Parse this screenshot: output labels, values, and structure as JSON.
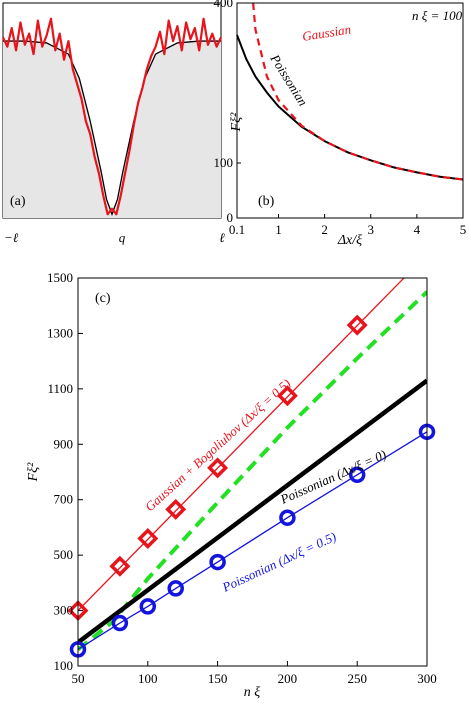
{
  "chart_data": [
    {
      "panel": "(a)",
      "type": "line",
      "x_ticklabels": [
        "−ℓ",
        "q",
        "ℓ"
      ],
      "series": [
        {
          "role": "smooth",
          "color": "#000000",
          "x": [
            -1,
            -0.8,
            -0.6,
            -0.4,
            -0.3,
            -0.2,
            -0.1,
            -0.05,
            0,
            0.05,
            0.1,
            0.2,
            0.3,
            0.4,
            0.6,
            0.8,
            1
          ],
          "y": [
            0.95,
            0.95,
            0.94,
            0.88,
            0.75,
            0.52,
            0.25,
            0.1,
            0.02,
            0.1,
            0.25,
            0.52,
            0.75,
            0.88,
            0.94,
            0.95,
            0.95
          ]
        },
        {
          "role": "noisy",
          "color": "#e8141c",
          "x": [
            -1,
            -0.96,
            -0.92,
            -0.88,
            -0.84,
            -0.8,
            -0.76,
            -0.72,
            -0.68,
            -0.64,
            -0.6,
            -0.56,
            -0.52,
            -0.48,
            -0.44,
            -0.4,
            -0.36,
            -0.32,
            -0.28,
            -0.24,
            -0.2,
            -0.16,
            -0.12,
            -0.08,
            -0.04,
            0,
            0.04,
            0.08,
            0.12,
            0.16,
            0.2,
            0.24,
            0.28,
            0.32,
            0.36,
            0.4,
            0.44,
            0.48,
            0.52,
            0.56,
            0.6,
            0.64,
            0.68,
            0.72,
            0.76,
            0.8,
            0.84,
            0.88,
            0.92,
            0.96,
            1
          ],
          "y": [
            0.97,
            0.92,
            1.02,
            0.9,
            1.05,
            0.93,
            0.99,
            0.88,
            1.06,
            0.92,
            0.98,
            1.07,
            0.9,
            0.99,
            0.85,
            0.95,
            0.8,
            0.72,
            0.64,
            0.52,
            0.45,
            0.33,
            0.24,
            0.12,
            0.02,
            0.05,
            0.02,
            0.12,
            0.24,
            0.36,
            0.5,
            0.62,
            0.7,
            0.8,
            0.87,
            0.92,
            1.0,
            0.88,
            1.06,
            0.95,
            1.03,
            0.9,
            1.05,
            0.96,
            1.02,
            0.9,
            1.07,
            0.93,
            0.99,
            0.92,
            0.97
          ]
        }
      ]
    },
    {
      "panel": "(b)",
      "type": "line",
      "xlabel": "Δx/ξ",
      "ylabel": "Fξ²",
      "xlim": [
        0.1,
        5
      ],
      "ylim": [
        0,
        400
      ],
      "x_ticks": [
        0.1,
        1,
        2,
        3,
        4,
        5
      ],
      "y_ticks": [
        0,
        100,
        400
      ],
      "x_ticklabels": [
        "0.1",
        "1",
        "2",
        "3",
        "4",
        "5"
      ],
      "y_ticklabels": [
        "0",
        "100",
        "400"
      ],
      "annotation_top": "n ξ = 100",
      "series": [
        {
          "name": "Poissonian",
          "color": "#000000",
          "style": "solid",
          "x": [
            0.1,
            0.3,
            0.5,
            0.75,
            1,
            1.5,
            2,
            2.5,
            3,
            3.5,
            4,
            4.5,
            5
          ],
          "y": [
            340,
            295,
            262,
            232,
            206,
            168,
            141,
            120,
            105,
            92,
            83,
            75,
            70
          ]
        },
        {
          "name": "Gaussian",
          "color": "#e8141c",
          "style": "dashed",
          "x": [
            0.45,
            0.5,
            0.75,
            1,
            1.5,
            2,
            2.5,
            3,
            3.5,
            4,
            4.5,
            5
          ],
          "y": [
            400,
            350,
            262,
            218,
            170,
            141,
            120,
            105,
            92,
            83,
            75,
            70
          ]
        }
      ]
    },
    {
      "panel": "(c)",
      "type": "line",
      "xlabel": "n ξ",
      "ylabel": "Fξ²",
      "xlim": [
        50,
        300
      ],
      "ylim": [
        100,
        1500
      ],
      "x_ticks": [
        50,
        100,
        150,
        200,
        250,
        300
      ],
      "y_ticks": [
        100,
        300,
        500,
        700,
        900,
        1100,
        1300,
        1500
      ],
      "x_ticklabels": [
        "50",
        "100",
        "150",
        "200",
        "250",
        "300"
      ],
      "y_ticklabels": [
        "100",
        "300",
        "500",
        "700",
        "900",
        "1100",
        "1300",
        "1500"
      ],
      "series": [
        {
          "name": "Gaussian + Bogoliubov (Δx/ξ = 0.5)",
          "color": "#e8141c",
          "marker": "diamond",
          "x": [
            50,
            80,
            100,
            120,
            150,
            200,
            250
          ],
          "y": [
            300,
            460,
            560,
            665,
            815,
            1075,
            1330
          ],
          "line_x": [
            50,
            300
          ],
          "line_y": [
            300,
            1585
          ]
        },
        {
          "name": "",
          "color": "#22e022",
          "style": "dashed",
          "x": [
            50,
            75,
            100,
            150,
            200,
            250,
            300
          ],
          "y": [
            160,
            260,
            415,
            690,
            960,
            1210,
            1450
          ]
        },
        {
          "name": "Poissonian (Δx/ξ = 0)",
          "color": "#000000",
          "style": "solid",
          "x": [
            50,
            300
          ],
          "y": [
            185,
            1130
          ]
        },
        {
          "name": "Poissonian (Δx/ξ = 0.5)",
          "color": "#1414e0",
          "marker": "circle",
          "x": [
            50,
            80,
            100,
            120,
            150,
            200,
            250,
            300
          ],
          "y": [
            160,
            255,
            315,
            380,
            475,
            635,
            790,
            945
          ]
        }
      ],
      "annotations": [
        {
          "text": "Gaussian + Bogoliubov (Δx/ξ = 0.5)",
          "color": "#e8141c"
        },
        {
          "text": "Poissonian (Δx/ξ = 0)",
          "color": "#000000"
        },
        {
          "text": "Poissonian (Δx/ξ = 0.5)",
          "color": "#1414e0"
        }
      ]
    }
  ],
  "labels": {
    "panel_a": "(a)",
    "panel_b": "(b)",
    "panel_c": "(c)",
    "gaussian_b": "Gaussian",
    "poissonian_b": "Poissonian",
    "n_xi_b": "n ξ = 100"
  }
}
